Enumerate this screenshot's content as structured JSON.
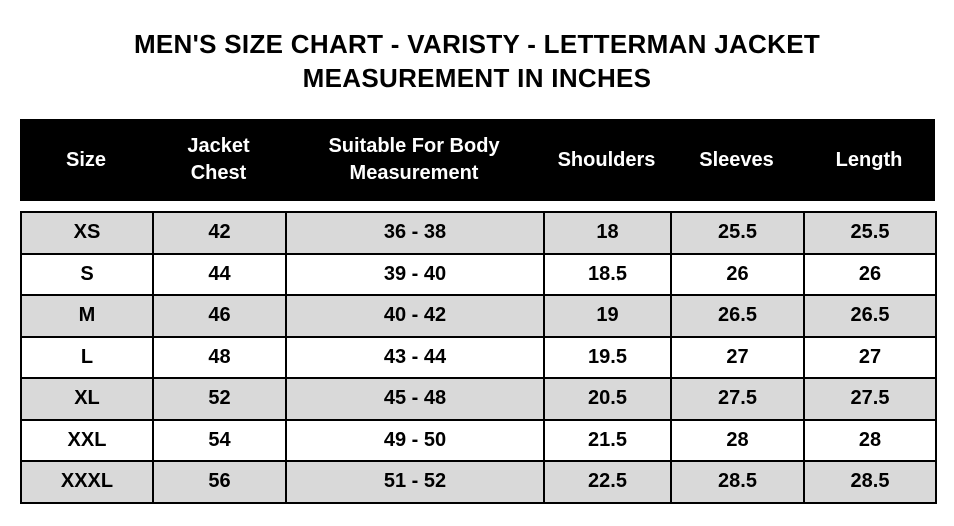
{
  "title": {
    "line1": "MEN'S SIZE CHART - VARISTY - LETTERMAN JACKET",
    "line2": "MEASUREMENT IN INCHES"
  },
  "table": {
    "columns": [
      "Size",
      "Jacket\nChest",
      "Suitable For Body\nMeasurement",
      "Shoulders",
      "Sleeves",
      "Length"
    ],
    "rows": [
      [
        "XS",
        "42",
        "36 - 38",
        "18",
        "25.5",
        "25.5"
      ],
      [
        "S",
        "44",
        "39 - 40",
        "18.5",
        "26",
        "26"
      ],
      [
        "M",
        "46",
        "40 - 42",
        "19",
        "26.5",
        "26.5"
      ],
      [
        "L",
        "48",
        "43 - 44",
        "19.5",
        "27",
        "27"
      ],
      [
        "XL",
        "52",
        "45 - 48",
        "20.5",
        "27.5",
        "27.5"
      ],
      [
        "XXL",
        "54",
        "49 - 50",
        "21.5",
        "28",
        "28"
      ],
      [
        "XXXL",
        "56",
        "51 - 52",
        "22.5",
        "28.5",
        "28.5"
      ]
    ]
  },
  "artifact_mark": "'",
  "colors": {
    "page_bg": "#ffffff",
    "header_bg": "#000000",
    "header_text": "#ffffff",
    "row_bg": "#ffffff",
    "row_alt_bg": "#d9d9d9",
    "border_color": "#000000",
    "text_color": "#000000"
  }
}
